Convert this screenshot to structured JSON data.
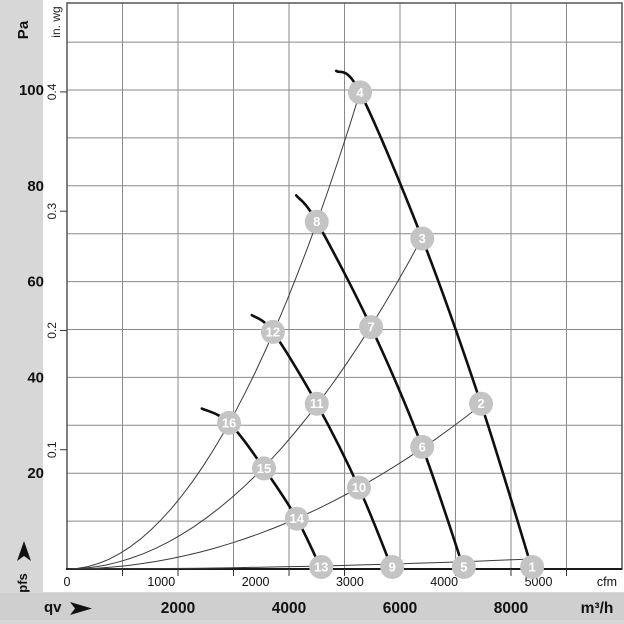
{
  "units": {
    "pressure_primary": "Pa",
    "pressure_secondary": "in. wg",
    "pressure_axis_symbol": "pfs",
    "flow_axis_symbol": "qv",
    "flow_secondary": "cfm",
    "flow_primary": "m³/h"
  },
  "colors": {
    "background": "#d7d7d7",
    "paper": "#ffffff",
    "band": "#cfcfcf",
    "grid": "#8a8a8a",
    "border": "#555555",
    "axis": "#1a1a1a",
    "fan_curve": "#0f0f0f",
    "system_curve": "#3a3a3a",
    "marker_fill": "#c4c4c4",
    "marker_text": "#ffffff",
    "tick_text": "#111111"
  },
  "chart_data": {
    "type": "line",
    "x_axis_primary": {
      "unit": "m³/h",
      "ticks": [
        2000,
        4000,
        6000,
        8000
      ],
      "range": [
        0,
        10000
      ],
      "grid_step": 1000
    },
    "x_axis_secondary": {
      "unit": "cfm",
      "ticks": [
        0,
        1000,
        2000,
        3000,
        4000,
        5000
      ]
    },
    "y_axis_primary": {
      "unit": "Pa",
      "ticks": [
        20,
        40,
        60,
        80,
        100
      ],
      "range": [
        0,
        118
      ],
      "grid_step": 10
    },
    "y_axis_secondary": {
      "unit": "in. wg",
      "ticks": [
        0.1,
        0.2,
        0.3,
        0.4
      ]
    },
    "legend": "none",
    "grid": "on",
    "fan_curves": [
      {
        "name": "curve-1-2-3-4",
        "points": [
          [
            4850,
            104
          ],
          [
            5280,
            99.5
          ],
          [
            6400,
            69
          ],
          [
            7460,
            34.5
          ],
          [
            8380,
            0
          ]
        ]
      },
      {
        "name": "curve-5-6-7-8",
        "points": [
          [
            4130,
            78
          ],
          [
            4500,
            72.5
          ],
          [
            5480,
            50.5
          ],
          [
            6400,
            25.5
          ],
          [
            7150,
            0
          ]
        ]
      },
      {
        "name": "curve-9-10-11-12",
        "points": [
          [
            3330,
            53
          ],
          [
            3710,
            49.5
          ],
          [
            4500,
            34.5
          ],
          [
            5260,
            17
          ],
          [
            5860,
            0
          ]
        ]
      },
      {
        "name": "curve-13-14-15-16",
        "points": [
          [
            2430,
            33.5
          ],
          [
            2920,
            30.5
          ],
          [
            3550,
            21
          ],
          [
            4140,
            10.5
          ],
          [
            4580,
            0
          ]
        ]
      }
    ],
    "system_curves": [
      {
        "name": "system-line-through-4-8-12-16",
        "k": 3.57e-06,
        "v_end": 5280
      },
      {
        "name": "system-line-through-3-7-11-15",
        "k": 1.69e-06,
        "v_end": 6400
      },
      {
        "name": "system-line-through-2-6-10-14",
        "k": 6.15e-07,
        "v_end": 7460
      },
      {
        "name": "system-line-through-1-5-9-13",
        "k": 3e-08,
        "v_end": 8380
      }
    ],
    "operating_points": [
      {
        "label": "1",
        "v": 8380,
        "p": 0
      },
      {
        "label": "2",
        "v": 7460,
        "p": 34.5
      },
      {
        "label": "3",
        "v": 6400,
        "p": 69
      },
      {
        "label": "4",
        "v": 5280,
        "p": 99.5
      },
      {
        "label": "5",
        "v": 7150,
        "p": 0
      },
      {
        "label": "6",
        "v": 6400,
        "p": 25.5
      },
      {
        "label": "7",
        "v": 5480,
        "p": 50.5
      },
      {
        "label": "8",
        "v": 4500,
        "p": 72.5
      },
      {
        "label": "9",
        "v": 5860,
        "p": 0
      },
      {
        "label": "10",
        "v": 5260,
        "p": 17
      },
      {
        "label": "11",
        "v": 4500,
        "p": 34.5
      },
      {
        "label": "12",
        "v": 3710,
        "p": 49.5
      },
      {
        "label": "13",
        "v": 4580,
        "p": 0
      },
      {
        "label": "14",
        "v": 4140,
        "p": 10.5
      },
      {
        "label": "15",
        "v": 3550,
        "p": 21
      },
      {
        "label": "16",
        "v": 2920,
        "p": 30.5
      }
    ]
  }
}
